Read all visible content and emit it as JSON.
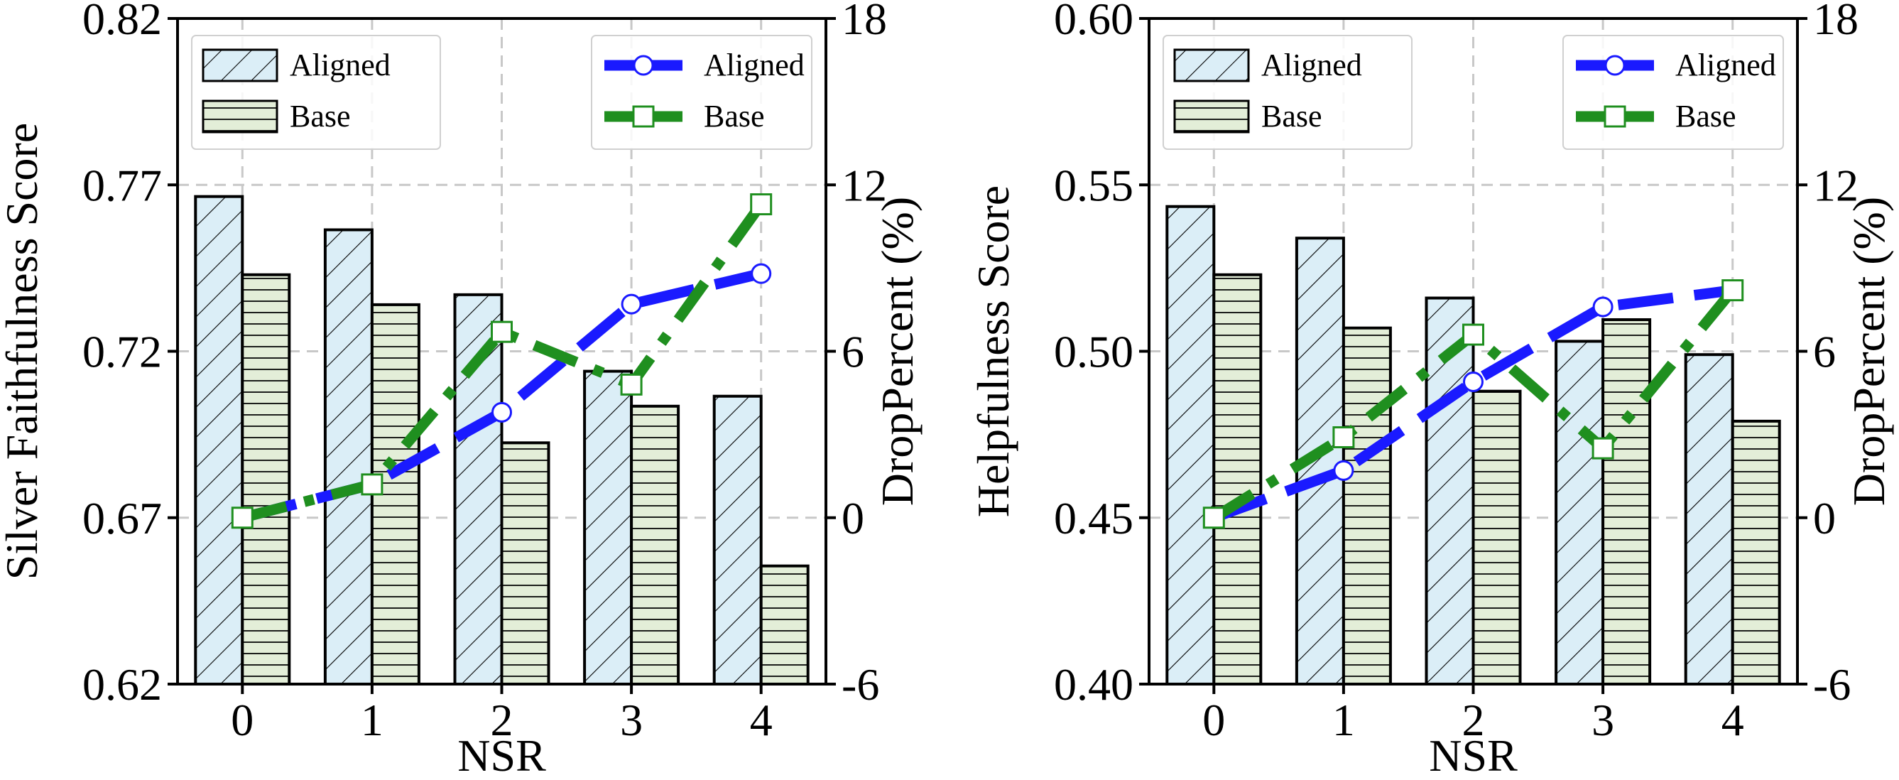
{
  "colors": {
    "aligned_bar": "#dbeef7",
    "base_bar": "#e3eed8",
    "aligned_line": "#1a1aff",
    "base_line": "#1f8f1f",
    "grid": "#c8c8c8"
  },
  "chart_data": [
    {
      "type": "bar",
      "id": "faithfulness",
      "xlabel": "NSR",
      "ylabel": "Silver Faithfulness Score",
      "y2label": "DropPercent (%)",
      "categories": [
        "0",
        "1",
        "2",
        "3",
        "4"
      ],
      "ylim": [
        0.62,
        0.82
      ],
      "yticks": [
        "0.62",
        "0.67",
        "0.72",
        "0.77",
        "0.82"
      ],
      "y2lim": [
        -6,
        18
      ],
      "y2ticks": [
        "-6",
        "0",
        "6",
        "12",
        "18"
      ],
      "bar_series": [
        {
          "name": "Aligned",
          "values": [
            0.7665,
            0.7565,
            0.737,
            0.714,
            0.7065
          ]
        },
        {
          "name": "Base",
          "values": [
            0.743,
            0.734,
            0.6925,
            0.7035,
            0.6555
          ]
        }
      ],
      "line_series": [
        {
          "name": "Aligned",
          "values": [
            0,
            1.2,
            3.8,
            7.7,
            8.8
          ]
        },
        {
          "name": "Base",
          "values": [
            0,
            1.2,
            6.7,
            4.8,
            11.3
          ]
        }
      ],
      "legend_bars_position": "top-left",
      "legend_lines_position": "top-right",
      "grid": true
    },
    {
      "type": "bar",
      "id": "helpfulness",
      "xlabel": "NSR",
      "ylabel": "Helpfulness Score",
      "y2label": "DropPercent (%)",
      "categories": [
        "0",
        "1",
        "2",
        "3",
        "4"
      ],
      "ylim": [
        0.4,
        0.6
      ],
      "yticks": [
        "0.40",
        "0.45",
        "0.50",
        "0.55",
        "0.60"
      ],
      "y2lim": [
        -6,
        18
      ],
      "y2ticks": [
        "-6",
        "0",
        "6",
        "12",
        "18"
      ],
      "bar_series": [
        {
          "name": "Aligned",
          "values": [
            0.5435,
            0.534,
            0.516,
            0.503,
            0.499
          ]
        },
        {
          "name": "Base",
          "values": [
            0.523,
            0.507,
            0.488,
            0.5095,
            0.479
          ]
        }
      ],
      "line_series": [
        {
          "name": "Aligned",
          "values": [
            0,
            1.7,
            4.9,
            7.6,
            8.2
          ]
        },
        {
          "name": "Base",
          "values": [
            0,
            2.9,
            6.6,
            2.5,
            8.2
          ]
        }
      ],
      "legend_bars_position": "top-left",
      "legend_lines_position": "top-right",
      "grid": true
    }
  ]
}
